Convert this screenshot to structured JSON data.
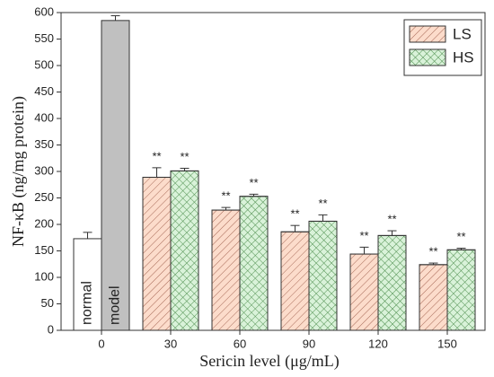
{
  "chart_data": {
    "type": "bar",
    "x_label": "Sericin level (μg/mL)",
    "y_label": "NF-κB (ng/mg protein)",
    "categories": [
      "0",
      "30",
      "60",
      "90",
      "120",
      "150"
    ],
    "ylim": [
      0,
      600
    ],
    "yticks": [
      0,
      50,
      100,
      150,
      200,
      250,
      300,
      350,
      400,
      450,
      500,
      550,
      600
    ],
    "legend_position": "top-right",
    "series": [
      {
        "name": "normal",
        "color": "#ffffff",
        "hatch": "none",
        "label_inside": true,
        "legend": false,
        "values": [
          173,
          null,
          null,
          null,
          null,
          null
        ],
        "errors": [
          12,
          null,
          null,
          null,
          null,
          null
        ]
      },
      {
        "name": "model",
        "color": "#c0c0c0",
        "hatch": "none",
        "label_inside": true,
        "legend": false,
        "values": [
          585,
          null,
          null,
          null,
          null,
          null
        ],
        "errors": [
          9,
          null,
          null,
          null,
          null,
          null
        ]
      },
      {
        "name": "LS",
        "color": "#fcdccb",
        "hatch": "diagonal",
        "label_inside": false,
        "legend": true,
        "values": [
          null,
          289,
          227,
          186,
          144,
          124
        ],
        "errors": [
          null,
          18,
          5,
          12,
          13,
          3
        ],
        "annotations": [
          null,
          "**",
          "**",
          "**",
          "**",
          "**"
        ]
      },
      {
        "name": "HS",
        "color": "#d9f2d9",
        "hatch": "cross",
        "label_inside": false,
        "legend": true,
        "values": [
          null,
          301,
          253,
          206,
          179,
          152
        ],
        "errors": [
          null,
          5,
          4,
          12,
          9,
          3
        ],
        "annotations": [
          null,
          "**",
          "**",
          "**",
          "**",
          "**"
        ]
      }
    ]
  }
}
